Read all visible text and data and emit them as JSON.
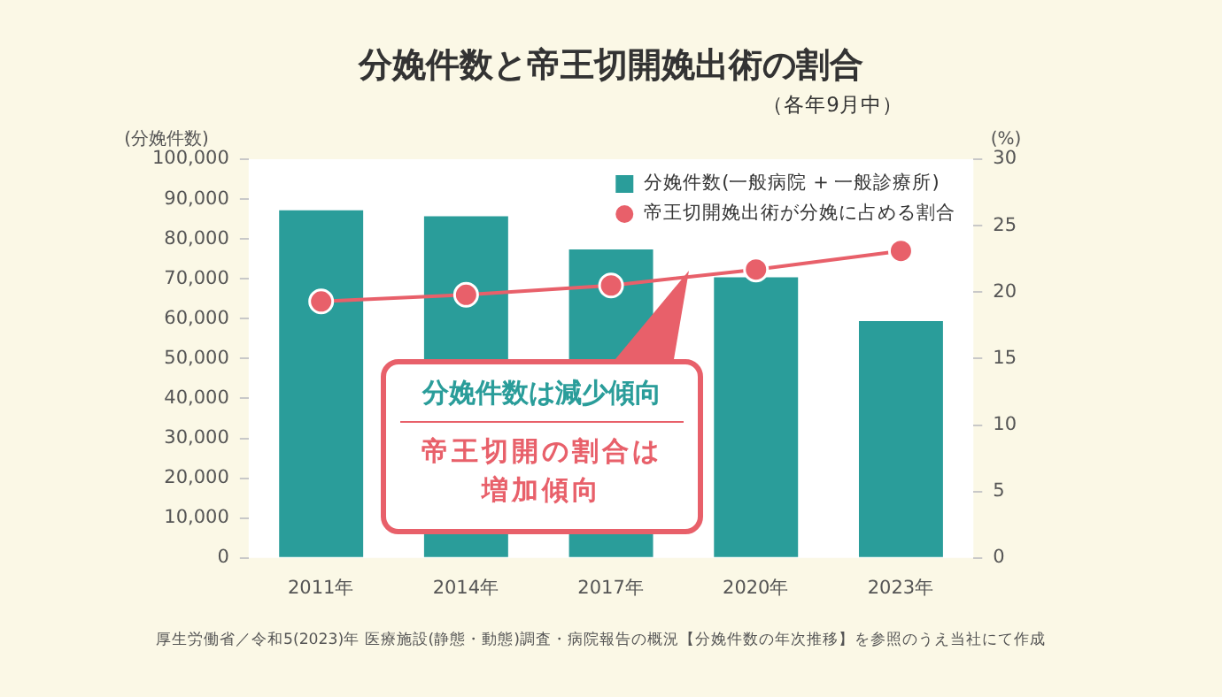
{
  "chart_data": {
    "type": "bar",
    "title": "分娩件数と帝王切開娩出術の割合",
    "subtitle": "（各年9月中）",
    "ylabel": "(分娩件数)",
    "y2label": "(%)",
    "categories": [
      "2011年",
      "2014年",
      "2017年",
      "2020年",
      "2023年"
    ],
    "series": [
      {
        "name": "分娩件数(一般病院 + 一般診療所)",
        "color": "#2a9d9a",
        "values": [
          87200,
          85700,
          77400,
          70400,
          59400
        ]
      },
      {
        "name": "帝王切開娩出術が分娩に占める割合",
        "type": "line",
        "axis": "y2",
        "color": "#e8606a",
        "values": [
          19.3,
          19.8,
          20.5,
          21.7,
          23.1
        ]
      }
    ],
    "ylim": [
      0,
      100000
    ],
    "yticks": [
      {
        "value": 0,
        "label": "0"
      },
      {
        "value": 10000,
        "label": "10,000"
      },
      {
        "value": 20000,
        "label": "20,000"
      },
      {
        "value": 30000,
        "label": "30,000"
      },
      {
        "value": 40000,
        "label": "40,000"
      },
      {
        "value": 50000,
        "label": "50,000"
      },
      {
        "value": 60000,
        "label": "60,000"
      },
      {
        "value": 70000,
        "label": "70,000"
      },
      {
        "value": 80000,
        "label": "80,000"
      },
      {
        "value": 90000,
        "label": "90,000"
      },
      {
        "value": 100000,
        "label": "100,000"
      }
    ],
    "y2lim": [
      0,
      30
    ],
    "y2ticks": [
      0,
      5,
      10,
      15,
      20,
      25,
      30
    ],
    "grid": false,
    "legend": "top right",
    "marker": "circle",
    "line_style": "solid",
    "annotations": [
      "分娩件数は減少傾向",
      "帝王切開の割合は増加傾向",
      "厚生労働省／令和5(2023)年 医療施設(静態・動態)調査・病院報告の概況【分娩件数の年次推移】を参照のうえ当社にて作成"
    ]
  }
}
